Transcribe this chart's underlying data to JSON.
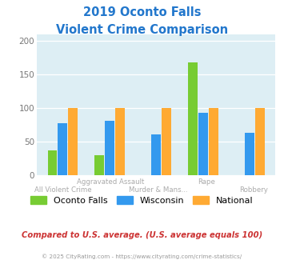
{
  "title_line1": "2019 Oconto Falls",
  "title_line2": "Violent Crime Comparison",
  "categories": [
    "All Violent Crime",
    "Aggravated Assault",
    "Murder & Mans...",
    "Rape",
    "Robbery"
  ],
  "top_labels": [
    "",
    "Aggravated Assault",
    "",
    "Rape",
    ""
  ],
  "bottom_labels": [
    "All Violent Crime",
    "",
    "Murder & Mans...",
    "",
    "Robbery"
  ],
  "series": {
    "Oconto Falls": [
      38,
      30,
      0,
      168,
      0
    ],
    "Wisconsin": [
      78,
      81,
      61,
      93,
      64
    ],
    "National": [
      100,
      100,
      100,
      100,
      100
    ]
  },
  "colors": {
    "Oconto Falls": "#77cc33",
    "Wisconsin": "#3399ee",
    "National": "#ffaa33"
  },
  "ylim": [
    0,
    210
  ],
  "yticks": [
    0,
    50,
    100,
    150,
    200
  ],
  "background_color": "#ddeef4",
  "title_color": "#2277cc",
  "tick_color": "#aaaaaa",
  "xlabel_color": "#aaaaaa",
  "footer_text": "Compared to U.S. average. (U.S. average equals 100)",
  "footer_color": "#cc3333",
  "copyright_text": "© 2025 CityRating.com - https://www.cityrating.com/crime-statistics/",
  "copyright_color": "#999999",
  "bar_width": 0.22
}
